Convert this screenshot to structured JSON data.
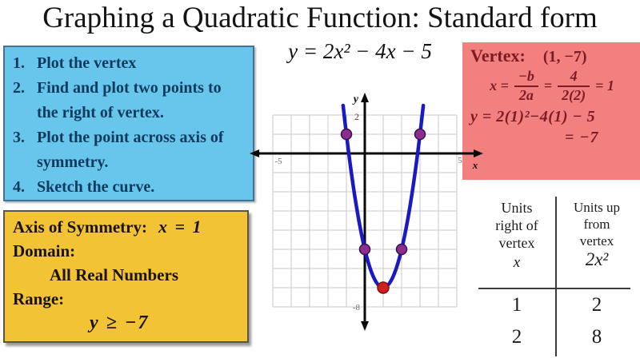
{
  "title": "Graphing a Quadratic Function: Standard form",
  "equation": "y = 2x² − 4x − 5",
  "steps": {
    "items": [
      {
        "num": "1.",
        "text": "Plot the vertex"
      },
      {
        "num": "2.",
        "text": "Find and plot two points to the right of vertex."
      },
      {
        "num": "3.",
        "text": "Plot the point across axis of symmetry."
      },
      {
        "num": "4.",
        "text": "Sketch the curve."
      }
    ]
  },
  "properties": {
    "axis_label": "Axis of Symmetry:",
    "axis_value": "x = 1",
    "domain_label": "Domain:",
    "domain_value": "All Real Numbers",
    "range_label": "Range:",
    "range_value": "y ≥ −7"
  },
  "vertex_box": {
    "label": "Vertex:",
    "value": "(1, −7)",
    "x_step": {
      "lhs": "x =",
      "frac1_num": "−b",
      "frac1_den": "2a",
      "eq": "=",
      "frac2_num": "4",
      "frac2_den": "2(2)",
      "result": "= 1"
    },
    "y_step": "y = 2(1)²−4(1) − 5",
    "y_result": "= −7"
  },
  "table": {
    "col1_lines": [
      "Units",
      "right of",
      "vertex"
    ],
    "col1_symbol": "x",
    "col2_lines": [
      "Units up",
      "from",
      "vertex"
    ],
    "col2_symbol": "2x²",
    "rows": [
      [
        "1",
        "2"
      ],
      [
        "2",
        "8"
      ]
    ]
  },
  "chart_data": {
    "type": "line",
    "title": "Parabola y = 2x² − 4x − 5",
    "function": {
      "formula": "y = 2x² − 4x − 5",
      "a": 2,
      "b": -4,
      "c": -5
    },
    "x_range": [
      -5,
      5
    ],
    "y_range": [
      -8,
      2
    ],
    "grid": true,
    "axis_labels": {
      "x": "x",
      "y": "y"
    },
    "tick_labels": {
      "x_left": "-5",
      "x_right": "5",
      "y_top": "2",
      "y_bottom": "-8"
    },
    "vertex": {
      "x": 1,
      "y": -7
    },
    "points": [
      {
        "x": -1,
        "y": 1,
        "role": "plotted"
      },
      {
        "x": 3,
        "y": 1,
        "role": "plotted"
      },
      {
        "x": 0,
        "y": -5,
        "role": "plotted"
      },
      {
        "x": 2,
        "y": -5,
        "role": "plotted"
      },
      {
        "x": 1,
        "y": -7,
        "role": "vertex"
      }
    ],
    "colors": {
      "curve": "#1a1ac4",
      "plotted_point": "#8e2d8e",
      "plotted_point_ring": "#35104f",
      "vertex_point": "#ce1f1f",
      "vertex_point_ring": "#7e0f0f",
      "grid_line": "#c8c8c8",
      "axis": "#0a0a0a"
    }
  }
}
